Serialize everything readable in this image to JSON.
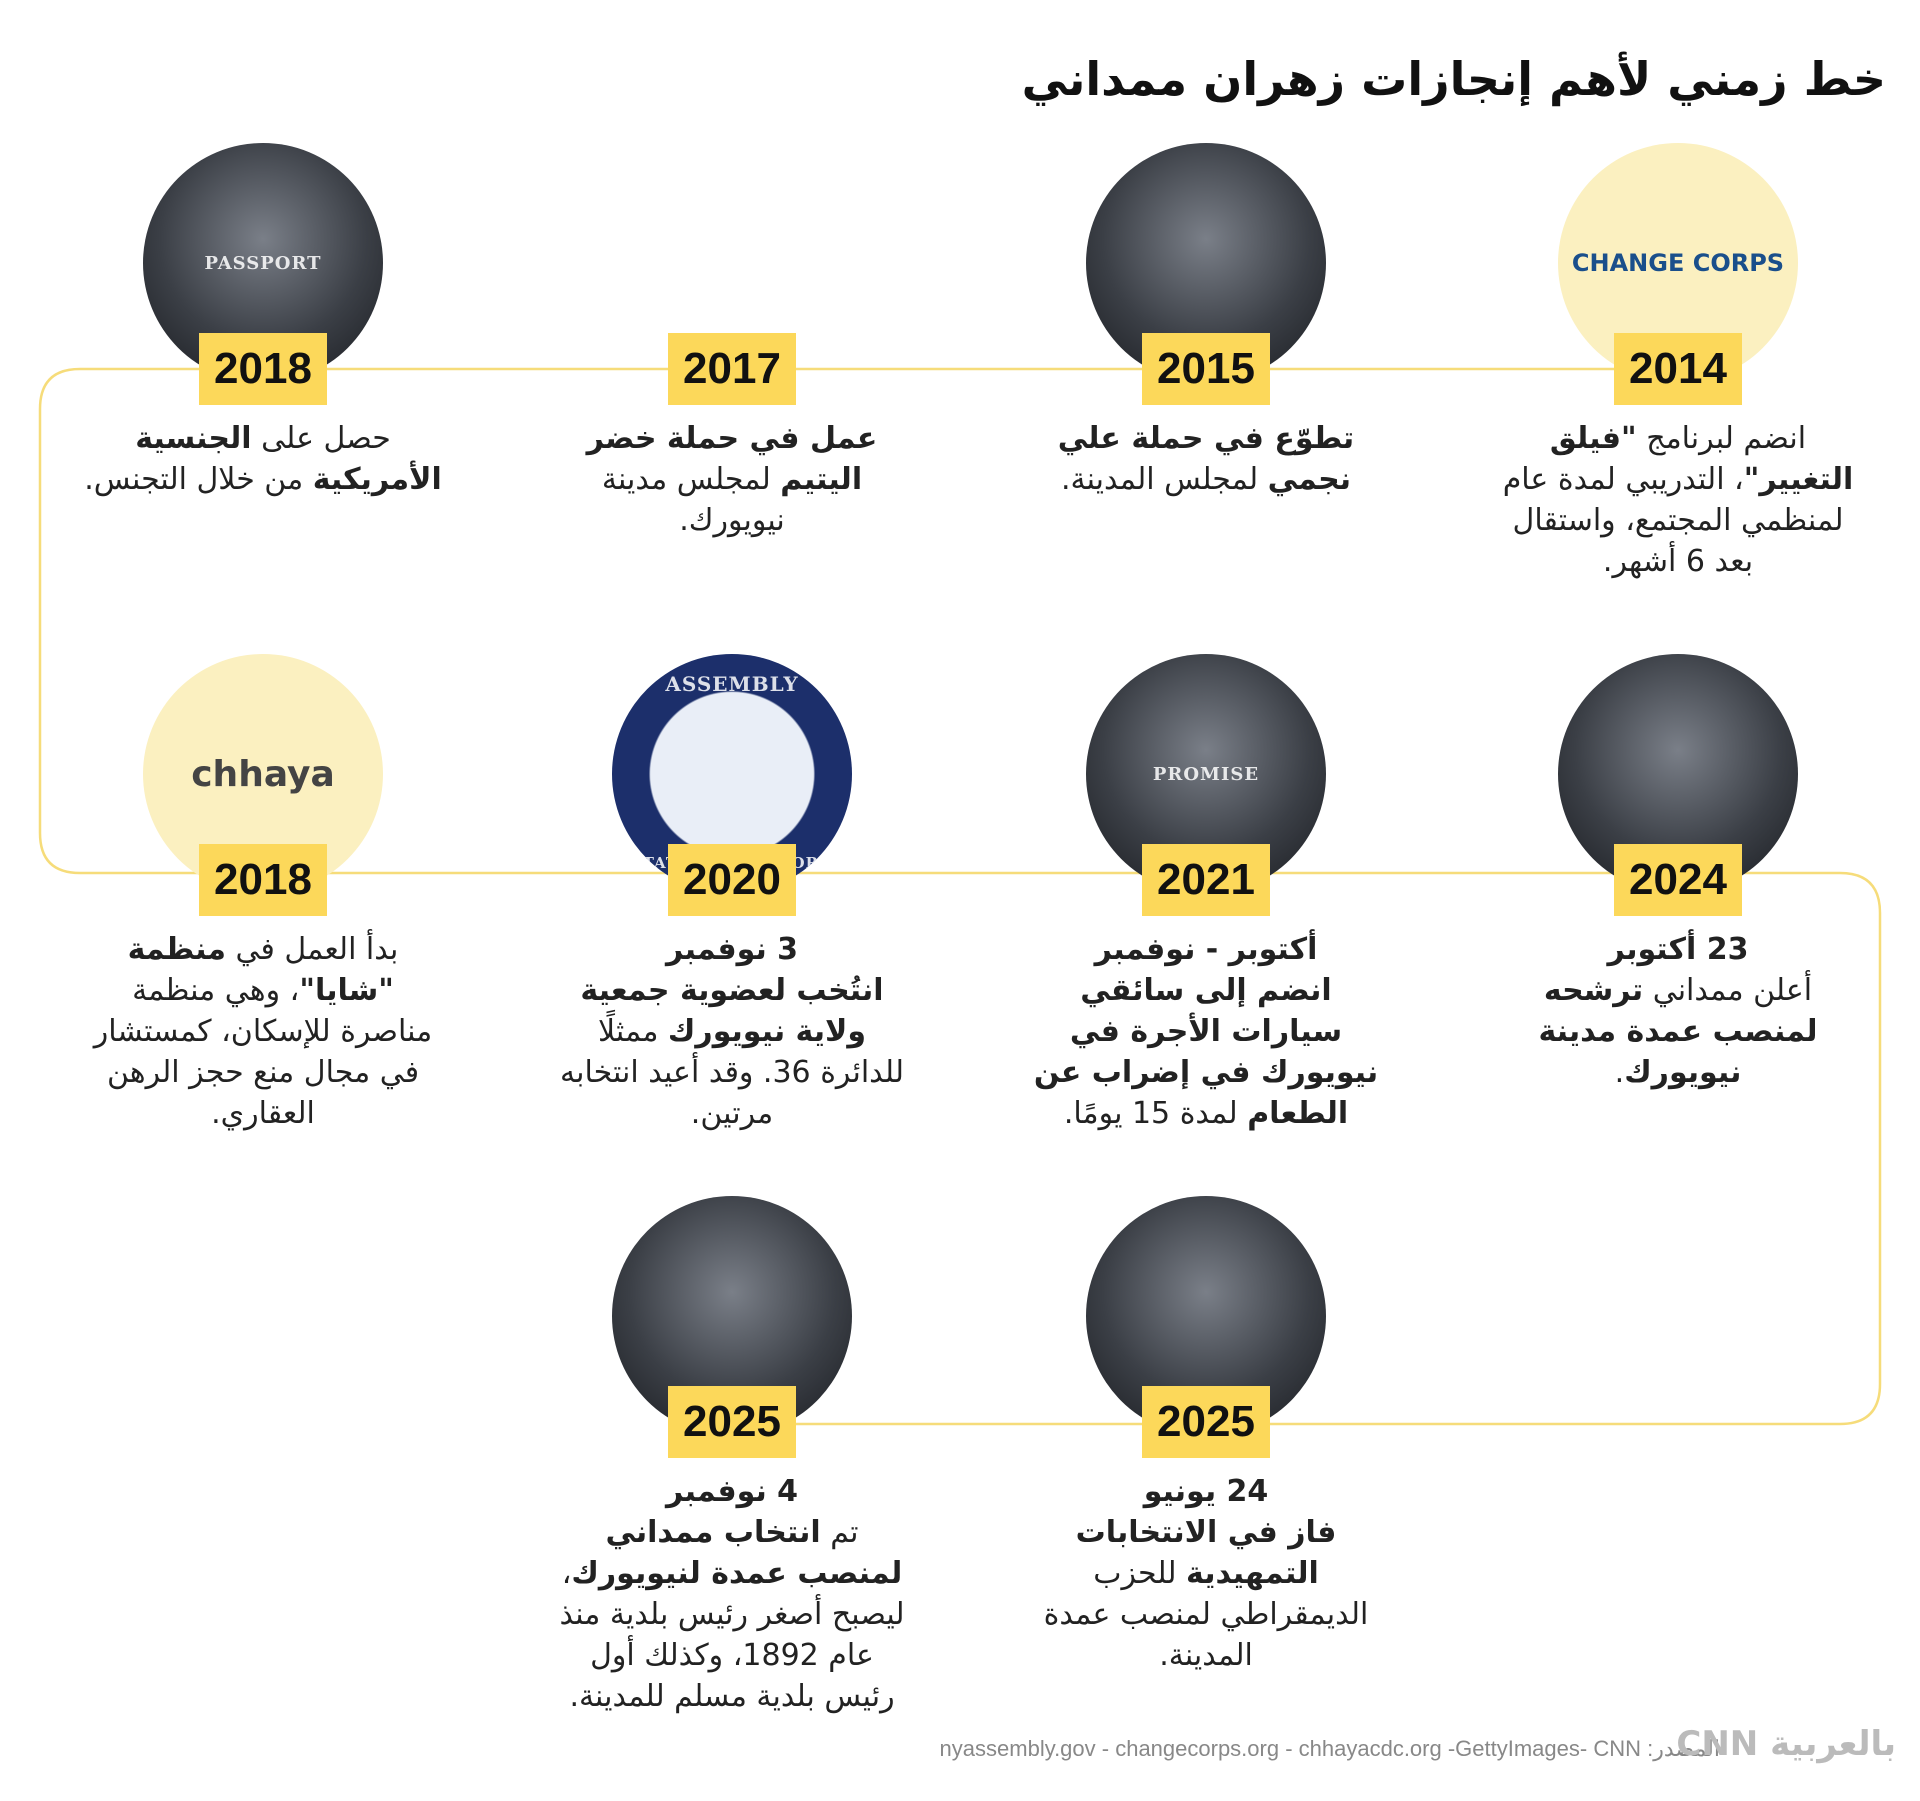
{
  "title": "خط زمني لأهم إنجازات زهران ممداني",
  "items": [
    {
      "year": "2014",
      "image": {
        "kind": "logo",
        "label": "CHANGE CORPS"
      },
      "parts": [
        {
          "text": "انضم لبرنامج "
        },
        {
          "text": "\"فيلق التغيير\"",
          "bold": true
        },
        {
          "text": "، التدريبي لمدة عام لمنظمي المجتمع، واستقال بعد 6 أشهر."
        }
      ]
    },
    {
      "year": "2015",
      "image": {
        "kind": "photo"
      },
      "parts": [
        {
          "text": "تطوّع في حملة علي نجمي",
          "bold": true
        },
        {
          "text": " لمجلس المدينة."
        }
      ]
    },
    {
      "year": "2017",
      "image": {
        "kind": "none"
      },
      "parts": [
        {
          "text": "عمل في حملة خضر اليتيم",
          "bold": true
        },
        {
          "text": " لمجلس مدينة نيويورك."
        }
      ]
    },
    {
      "year": "2018",
      "image": {
        "kind": "photo",
        "label": "PASSPORT"
      },
      "parts": [
        {
          "text": "حصل على "
        },
        {
          "text": "الجنسية الأمريكية",
          "bold": true
        },
        {
          "text": " من خلال التجنس."
        }
      ]
    },
    {
      "year": "2024",
      "image": {
        "kind": "photo"
      },
      "date": "23 أكتوبر",
      "parts": [
        {
          "text": "أعلن ممداني "
        },
        {
          "text": "ترشحه لمنصب عمدة مدينة نيويورك",
          "bold": true
        },
        {
          "text": "."
        }
      ]
    },
    {
      "year": "2021",
      "image": {
        "kind": "photo",
        "label": "PROMISE"
      },
      "date": "أكتوبر - نوفمبر",
      "parts": [
        {
          "text": "انضم إلى سائقي سيارات الأجرة في نيويورك في إضراب عن الطعام",
          "bold": true
        },
        {
          "text": " لمدة 15 يومًا."
        }
      ]
    },
    {
      "year": "2020",
      "image": {
        "kind": "seal",
        "label": "ASSEMBLY",
        "sublabel": "STATE OF NEW YORK"
      },
      "date": "3 نوفمبر",
      "parts": [
        {
          "text": "انتُخب لعضوية جمعية ولاية نيويورك",
          "bold": true
        },
        {
          "text": " ممثلًا للدائرة 36. وقد أعيد انتخابه مرتين."
        }
      ]
    },
    {
      "year": "2018",
      "image": {
        "kind": "logo",
        "label": "chhaya"
      },
      "parts": [
        {
          "text": "بدأ العمل في "
        },
        {
          "text": "منظمة \"شايا\"",
          "bold": true
        },
        {
          "text": "، وهي منظمة مناصرة للإسكان، كمستشار في مجال منع حجز الرهن العقاري."
        }
      ]
    },
    {
      "year": "2025",
      "image": {
        "kind": "photo"
      },
      "date": "24 يونيو",
      "parts": [
        {
          "text": "فاز في الانتخابات التمهيدية",
          "bold": true
        },
        {
          "text": " للحزب الديمقراطي لمنصب عمدة المدينة."
        }
      ]
    },
    {
      "year": "2025",
      "image": {
        "kind": "photo"
      },
      "date": "4 نوفمبر",
      "parts": [
        {
          "text": "تم "
        },
        {
          "text": "انتخاب ممداني لمنصب عمدة لنيويورك",
          "bold": true
        },
        {
          "text": "، ليصبح أصغر رئيس بلدية منذ عام 1892، وكذلك أول رئيس بلدية مسلم للمدينة."
        }
      ]
    }
  ],
  "footer": {
    "source": "المصدر: nyassembly.gov - changecorps.org - chhayacdc.org -GettyImages- CNN",
    "logo": "بالعربية CNN"
  }
}
